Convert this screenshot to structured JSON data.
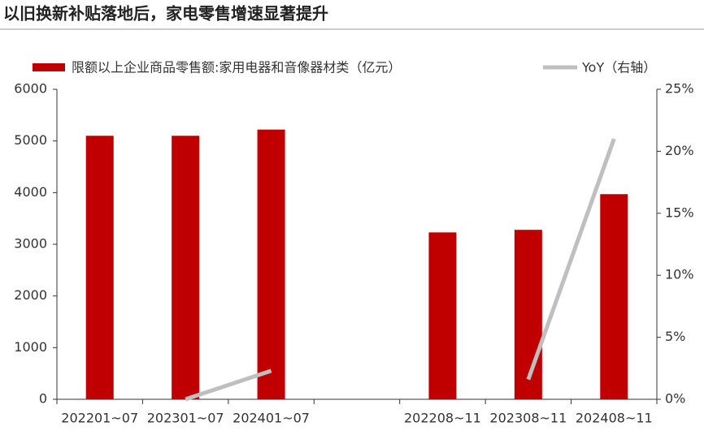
{
  "chart_data": {
    "type": "bar_line",
    "title": "以旧换新补贴落地后，家电零售增速显著提升",
    "categories": [
      "202201~07",
      "202301~07",
      "202401~07",
      null,
      "202208~11",
      "202308~11",
      "202408~11"
    ],
    "series": [
      {
        "name": "限额以上企业商品零售额:家用电器和音像器材类（亿元）",
        "type": "bar",
        "color": "#c00000",
        "values": [
          5100,
          5100,
          5220,
          null,
          3230,
          3280,
          3970
        ]
      },
      {
        "name": "YoY（右轴）",
        "type": "line",
        "axis": "y2",
        "color": "#bfbfbf",
        "values": [
          null,
          0,
          2.3,
          null,
          null,
          1.6,
          21.0
        ]
      }
    ],
    "ylim": [
      0,
      6000
    ],
    "yticks": [
      0,
      1000,
      2000,
      3000,
      4000,
      5000,
      6000
    ],
    "y2lim": [
      0,
      25
    ],
    "y2ticks": [
      {
        "value": 0,
        "label": "0%"
      },
      {
        "value": 5,
        "label": "5%"
      },
      {
        "value": 10,
        "label": "10%"
      },
      {
        "value": 15,
        "label": "15%"
      },
      {
        "value": 20,
        "label": "20%"
      },
      {
        "value": 25,
        "label": "25%"
      }
    ],
    "legend": "top"
  }
}
